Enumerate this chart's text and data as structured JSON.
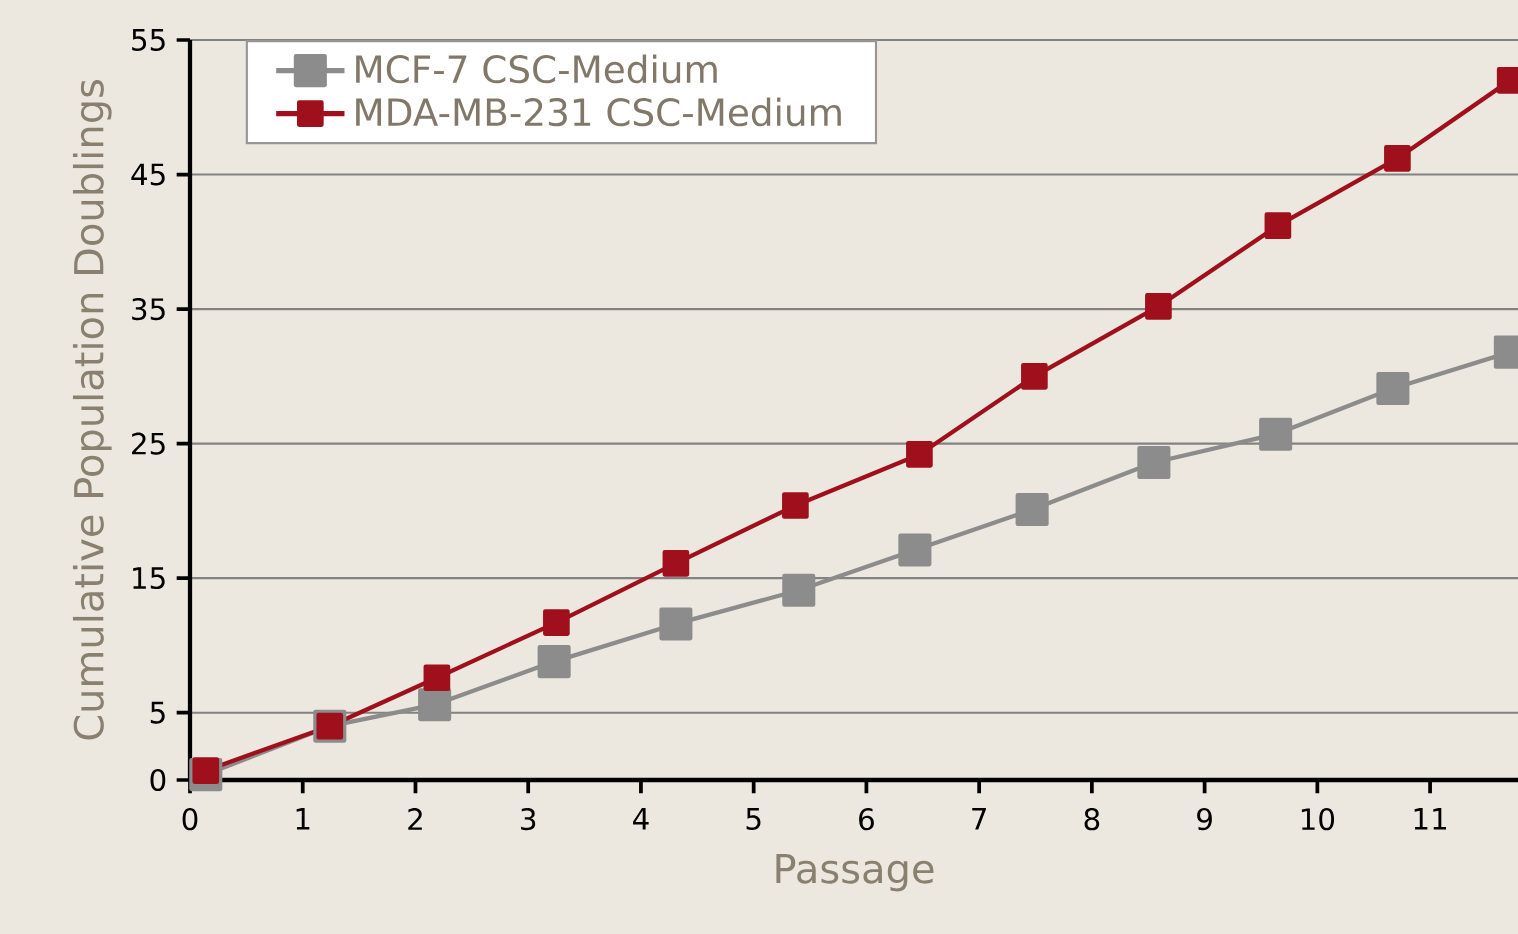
{
  "chart_data": {
    "type": "line",
    "xlabel": "Passage",
    "ylabel": "Cumulative Population Doublings",
    "xlim": [
      0,
      11.78
    ],
    "xticks": [
      0,
      1,
      2,
      3,
      4,
      5,
      6,
      7,
      8,
      9,
      10,
      11
    ],
    "ylim": [
      0,
      55
    ],
    "yticks": [
      0,
      5,
      15,
      25,
      35,
      45,
      55
    ],
    "grid": "y",
    "legend": "top left",
    "marker": "square",
    "line_style": "solid",
    "series": [
      {
        "name": "MCF-7 CSC-Medium",
        "color": "#8c8c8c",
        "x": [
          0.14,
          1.24,
          2.17,
          3.23,
          4.31,
          5.4,
          6.43,
          7.47,
          8.55,
          9.63,
          10.67,
          11.71
        ],
        "values": [
          0.4,
          4.0,
          5.6,
          8.8,
          11.6,
          14.1,
          17.1,
          20.1,
          23.6,
          25.7,
          29.1,
          31.8
        ]
      },
      {
        "name": "MDA-MB-231 CSC-Medium",
        "color": "#a0101c",
        "x": [
          0.14,
          1.24,
          2.19,
          3.25,
          4.31,
          5.37,
          6.47,
          7.49,
          8.59,
          9.65,
          10.71,
          11.71
        ],
        "values": [
          0.7,
          4.0,
          7.6,
          11.7,
          16.1,
          20.4,
          24.2,
          30.0,
          35.2,
          41.2,
          46.2,
          52.0
        ]
      }
    ]
  }
}
